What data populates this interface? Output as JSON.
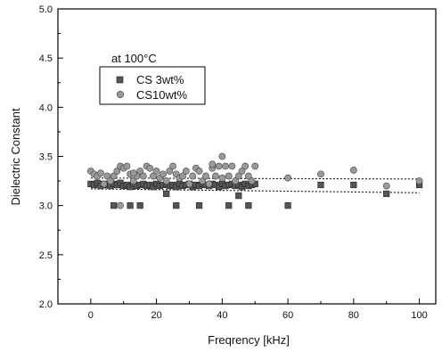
{
  "chart_data": {
    "type": "scatter",
    "title": "",
    "annotation": "at 100°C",
    "xlabel": "Freqrency [kHz]",
    "ylabel": "Dielectric Constant",
    "xlim": [
      -10,
      105
    ],
    "ylim": [
      2.0,
      5.0
    ],
    "x_ticks": [
      0,
      20,
      40,
      60,
      80,
      100
    ],
    "y_ticks": [
      "2.0",
      "2.5",
      "3.0",
      "3.5",
      "4.0",
      "4.5",
      "5.0"
    ],
    "grid": false,
    "legend_position": "upper-left",
    "series": [
      {
        "name": "CS  3wt%",
        "marker": "square",
        "color": "#555555",
        "x": [
          0,
          1,
          2,
          3,
          4,
          5,
          6,
          7,
          8,
          9,
          10,
          11,
          12,
          13,
          14,
          15,
          16,
          17,
          18,
          19,
          20,
          21,
          22,
          23,
          24,
          25,
          26,
          27,
          28,
          29,
          30,
          31,
          32,
          33,
          34,
          35,
          36,
          37,
          38,
          39,
          40,
          41,
          42,
          43,
          44,
          45,
          46,
          47,
          48,
          49,
          50,
          7,
          12,
          15,
          26,
          33,
          42,
          48,
          60,
          23,
          45,
          70,
          80,
          90,
          100
        ],
        "y": [
          3.22,
          3.21,
          3.23,
          3.2,
          3.22,
          3.21,
          3.2,
          3.22,
          3.21,
          3.23,
          3.2,
          3.21,
          3.19,
          3.22,
          3.2,
          3.21,
          3.22,
          3.2,
          3.21,
          3.19,
          3.22,
          3.2,
          3.21,
          3.22,
          3.2,
          3.21,
          3.19,
          3.22,
          3.2,
          3.21,
          3.22,
          3.19,
          3.21,
          3.2,
          3.22,
          3.21,
          3.2,
          3.22,
          3.21,
          3.19,
          3.22,
          3.2,
          3.21,
          3.22,
          3.2,
          3.21,
          3.19,
          3.22,
          3.2,
          3.21,
          3.22,
          3.0,
          3.0,
          3.0,
          3.0,
          3.0,
          3.0,
          3.0,
          3.0,
          3.12,
          3.1,
          3.21,
          3.21,
          3.12,
          3.21
        ]
      },
      {
        "name": "CS10wt%",
        "marker": "circle",
        "color": "#999999",
        "x": [
          0,
          1,
          2,
          3,
          4,
          5,
          6,
          7,
          8,
          9,
          10,
          11,
          12,
          13,
          14,
          15,
          16,
          17,
          18,
          19,
          20,
          21,
          22,
          23,
          24,
          25,
          26,
          27,
          28,
          29,
          30,
          31,
          32,
          33,
          34,
          35,
          36,
          37,
          38,
          39,
          40,
          41,
          42,
          43,
          44,
          45,
          46,
          47,
          48,
          49,
          50,
          9,
          13,
          37,
          40,
          60,
          70,
          80,
          90,
          100
        ],
        "y": [
          3.35,
          3.32,
          3.3,
          3.33,
          3.22,
          3.3,
          3.25,
          3.3,
          3.35,
          3.4,
          3.38,
          3.4,
          3.32,
          3.25,
          3.3,
          3.35,
          3.3,
          3.4,
          3.38,
          3.3,
          3.35,
          3.28,
          3.32,
          3.25,
          3.35,
          3.4,
          3.32,
          3.28,
          3.3,
          3.35,
          3.22,
          3.3,
          3.38,
          3.35,
          3.25,
          3.3,
          3.22,
          3.38,
          3.3,
          3.4,
          3.5,
          3.4,
          3.3,
          3.4,
          3.25,
          3.3,
          3.35,
          3.4,
          3.3,
          3.25,
          3.4,
          3.0,
          3.33,
          3.42,
          3.28,
          3.28,
          3.32,
          3.36,
          3.2,
          3.25
        ]
      }
    ],
    "reference_lines": [
      {
        "style": "dotted",
        "y": [
          3.28,
          3.27
        ]
      },
      {
        "style": "dotted",
        "y": [
          3.17,
          3.13
        ]
      }
    ]
  }
}
